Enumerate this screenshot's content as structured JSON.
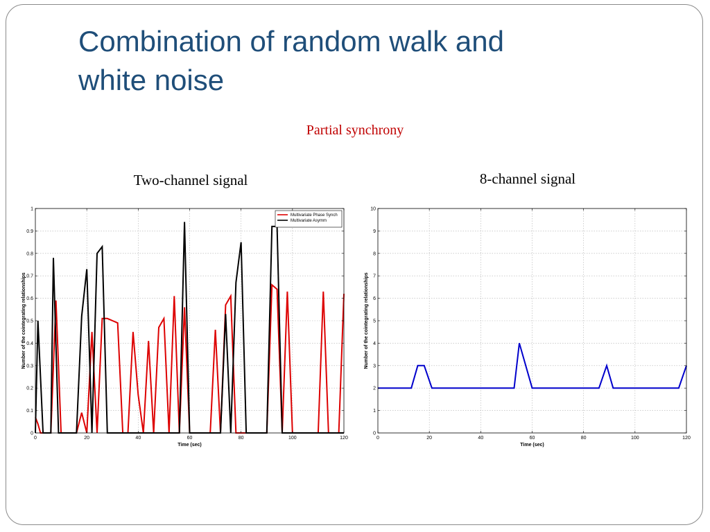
{
  "slide": {
    "title_line1": "Combination of random walk and",
    "title_line2": "white noise",
    "subtitle": "Partial synchrony"
  },
  "panels": {
    "left_heading": "Two-channel signal",
    "right_heading": "8-channel signal"
  },
  "colors": {
    "title": "#1f4e79",
    "subtitle": "#c00000",
    "red_series": "#dd0000",
    "black_series": "#000000",
    "blue_series": "#0000cc"
  },
  "chart_data": [
    {
      "type": "line",
      "xlabel": "Time (sec)",
      "ylabel": "Number of the cointegrating relationships",
      "xlim": [
        0,
        120
      ],
      "ylim": [
        0,
        1
      ],
      "xticks": [
        0,
        20,
        40,
        60,
        80,
        100,
        120
      ],
      "yticks": [
        0,
        0.1,
        0.2,
        0.3,
        0.4,
        0.5,
        0.6,
        0.7,
        0.8,
        0.9,
        1
      ],
      "grid": true,
      "legend_position": "top-right",
      "series": [
        {
          "name": "Multivariate Phase Synch",
          "color": "#dd0000",
          "x": [
            0,
            1,
            2,
            4,
            6,
            8,
            10,
            12,
            14,
            16,
            18,
            20,
            22,
            24,
            26,
            28,
            30,
            32,
            34,
            36,
            38,
            40,
            42,
            44,
            46,
            48,
            50,
            52,
            54,
            56,
            58,
            60,
            62,
            64,
            66,
            68,
            70,
            72,
            74,
            76,
            78,
            80,
            82,
            84,
            86,
            88,
            90,
            92,
            94,
            96,
            98,
            100,
            102,
            104,
            106,
            108,
            110,
            112,
            114,
            116,
            118,
            120
          ],
          "y": [
            0.07,
            0.04,
            0,
            0,
            0,
            0.59,
            0,
            0,
            0,
            0,
            0.09,
            0,
            0.45,
            0,
            0.51,
            0.51,
            0.5,
            0.49,
            0,
            0,
            0.45,
            0.17,
            0,
            0.41,
            0,
            0.47,
            0.51,
            0,
            0.61,
            0,
            0.56,
            0,
            0,
            0,
            0,
            0,
            0.46,
            0,
            0.57,
            0.61,
            0,
            0,
            0,
            0,
            0,
            0,
            0,
            0.66,
            0.64,
            0,
            0.63,
            0,
            0,
            0,
            0,
            0,
            0,
            0.63,
            0,
            0,
            0,
            0.62
          ]
        },
        {
          "name": "Multivariate Asymm",
          "color": "#000000",
          "x": [
            0,
            1,
            3,
            4,
            6,
            7,
            9,
            10,
            12,
            14,
            16,
            18,
            20,
            22,
            24,
            26,
            28,
            30,
            32,
            34,
            36,
            38,
            40,
            42,
            44,
            46,
            48,
            50,
            52,
            54,
            56,
            58,
            60,
            62,
            64,
            66,
            68,
            70,
            72,
            74,
            76,
            78,
            80,
            82,
            84,
            86,
            88,
            90,
            92,
            94,
            96,
            98,
            100,
            102,
            104,
            106,
            108,
            110,
            112,
            114,
            116,
            118,
            120
          ],
          "y": [
            0,
            0.5,
            0,
            0,
            0,
            0.78,
            0,
            0,
            0,
            0,
            0,
            0.52,
            0.73,
            0,
            0.8,
            0.83,
            0,
            0,
            0,
            0,
            0,
            0,
            0,
            0,
            0,
            0,
            0,
            0,
            0,
            0,
            0,
            0.94,
            0,
            0,
            0,
            0,
            0,
            0,
            0,
            0.53,
            0,
            0.67,
            0.85,
            0,
            0,
            0,
            0,
            0,
            0.92,
            0.92,
            0,
            0,
            0,
            0,
            0,
            0,
            0,
            0,
            0,
            0,
            0,
            0,
            0
          ]
        }
      ]
    },
    {
      "type": "line",
      "xlabel": "Time (sec)",
      "ylabel": "Number of the cointegrating relationships",
      "xlim": [
        0,
        120
      ],
      "ylim": [
        0,
        10
      ],
      "xticks": [
        0,
        20,
        40,
        60,
        80,
        100,
        120
      ],
      "yticks": [
        0,
        1,
        2,
        3,
        4,
        5,
        6,
        7,
        8,
        9,
        10
      ],
      "grid": true,
      "series": [
        {
          "color": "#0000cc",
          "x": [
            0,
            13,
            15.5,
            18,
            21,
            53,
            55,
            60,
            86,
            89,
            91.5,
            117,
            120
          ],
          "y": [
            2,
            2,
            3,
            3,
            2,
            2,
            4,
            2,
            2,
            3,
            2,
            2,
            3
          ]
        }
      ]
    }
  ]
}
